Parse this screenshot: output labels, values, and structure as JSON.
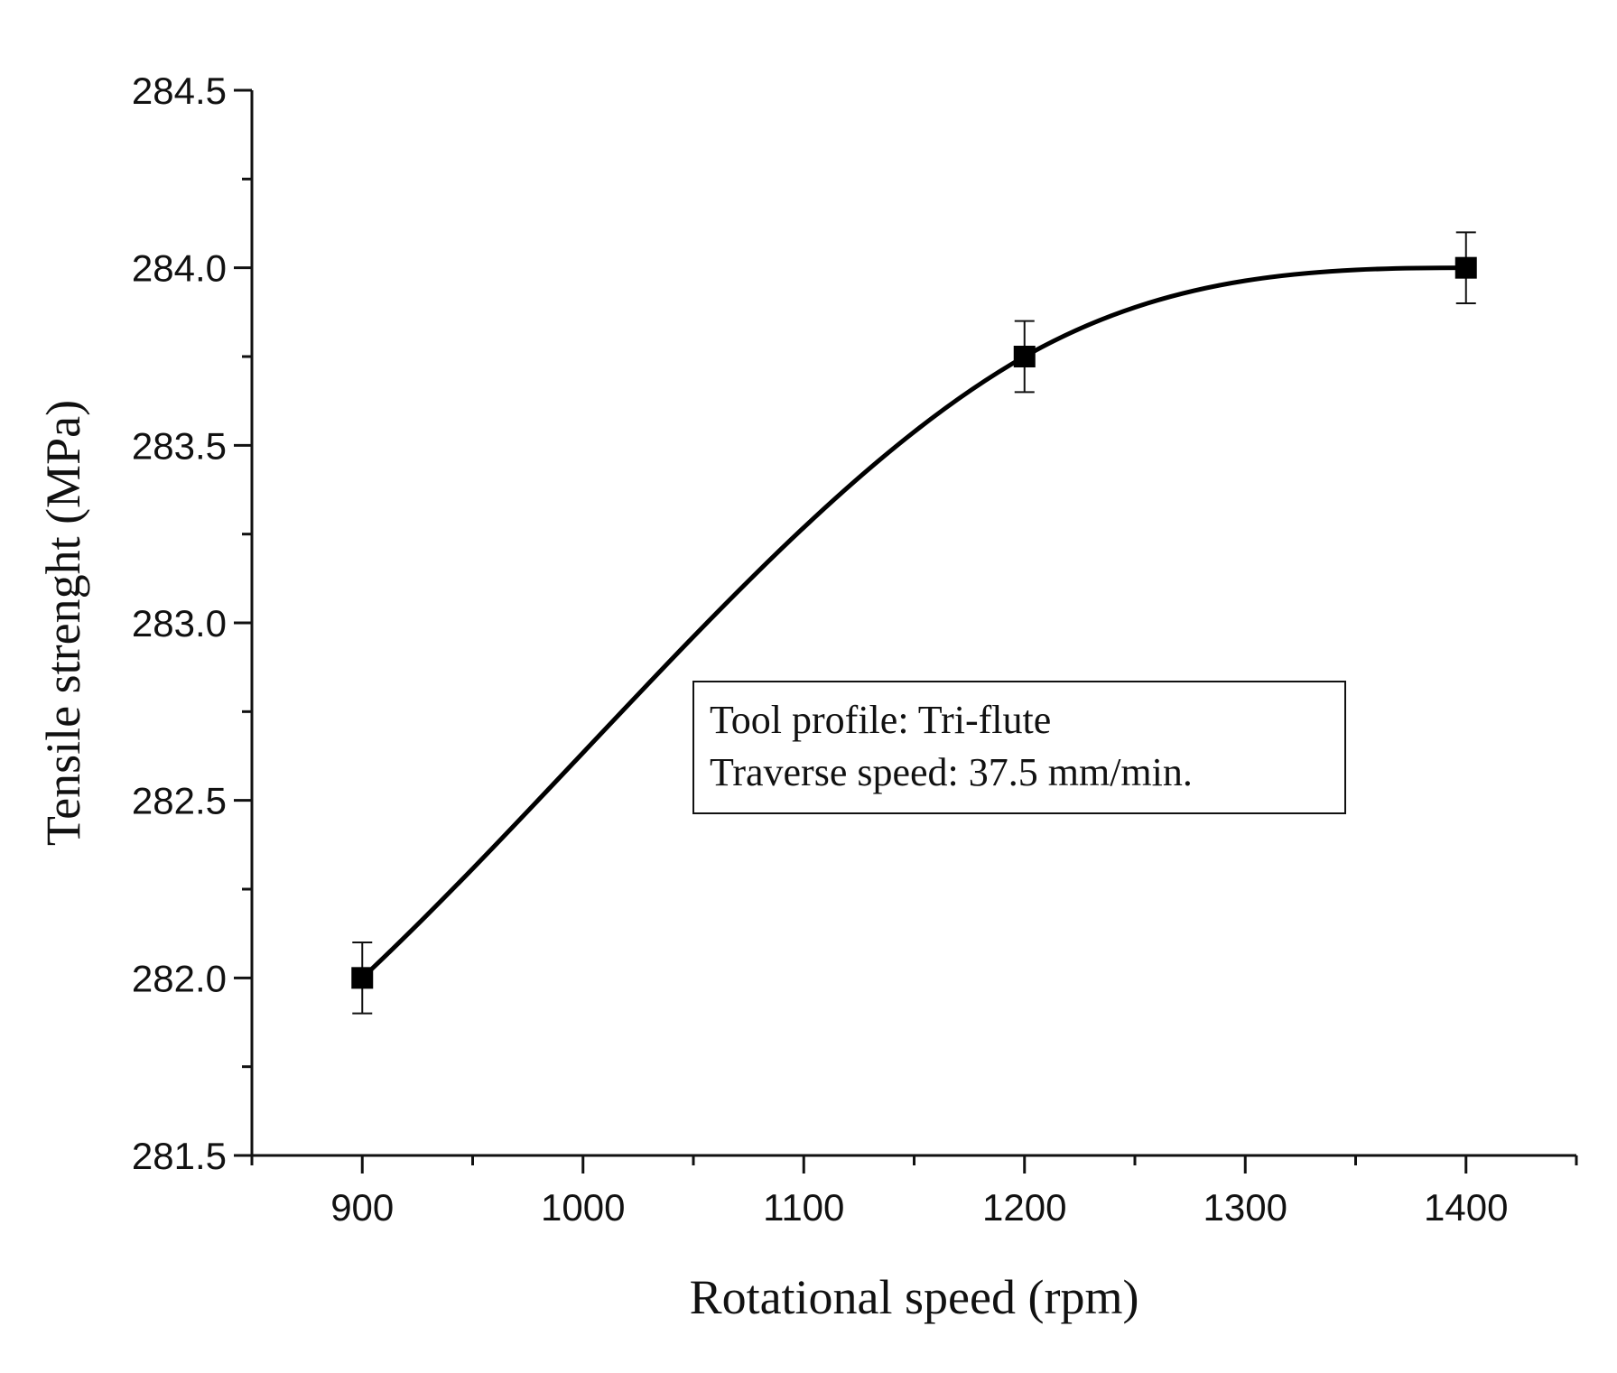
{
  "chart_data": {
    "type": "line",
    "title": "",
    "xlabel": "Rotational speed (rpm)",
    "ylabel": "Tensile strenght (MPa)",
    "xlim": [
      850,
      1450
    ],
    "ylim": [
      281.5,
      284.5
    ],
    "x_ticks": [
      900,
      1000,
      1100,
      1200,
      1300,
      1400
    ],
    "x_tick_labels": [
      "900",
      "1000",
      "1100",
      "1200",
      "1300",
      "1400"
    ],
    "x_minor_ticks": [
      850,
      950,
      1050,
      1150,
      1250,
      1350,
      1450
    ],
    "y_ticks": [
      281.5,
      282.0,
      282.5,
      283.0,
      283.5,
      284.0,
      284.5
    ],
    "y_tick_labels": [
      "281.5",
      "282.0",
      "282.5",
      "283.0",
      "283.5",
      "284.0",
      "284.5"
    ],
    "y_minor_ticks": [
      281.75,
      282.25,
      282.75,
      283.25,
      283.75,
      284.25
    ],
    "grid": false,
    "series": [
      {
        "name": "Tensile strength",
        "marker": "square",
        "color": "#000000",
        "smooth": true,
        "x": [
          900,
          1200,
          1400
        ],
        "values": [
          282.0,
          283.75,
          284.0
        ],
        "errors": [
          0.1,
          0.1,
          0.1
        ]
      }
    ],
    "annotation": {
      "lines": [
        "Tool profile: Tri-flute",
        "Traverse speed: 37.5 mm/min."
      ],
      "position": "center-right"
    }
  }
}
